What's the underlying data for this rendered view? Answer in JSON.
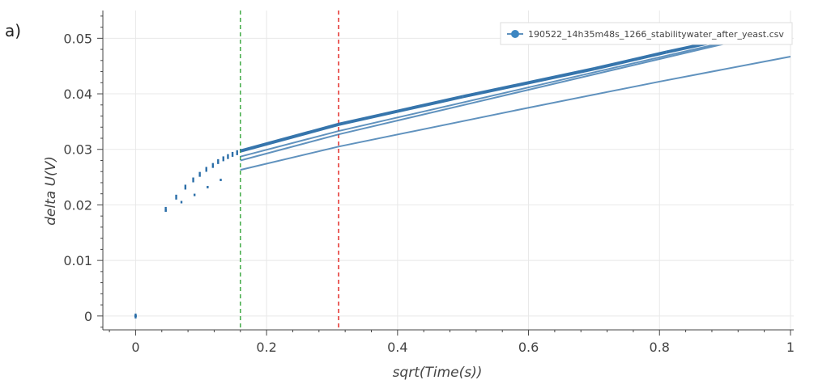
{
  "panel_label": "a)",
  "chart_data": {
    "type": "scatter",
    "xlabel": "sqrt(Time(s))",
    "ylabel": "delta U(V)",
    "xlim": [
      -0.05,
      1.005
    ],
    "ylim": [
      -0.0025,
      0.055
    ],
    "x_ticks": [
      0,
      0.2,
      0.4,
      0.6,
      0.8,
      1
    ],
    "x_tick_labels": [
      "0",
      "0.2",
      "0.4",
      "0.6",
      "0.8",
      "1"
    ],
    "y_ticks": [
      0,
      0.01,
      0.02,
      0.03,
      0.04,
      0.05
    ],
    "y_tick_labels": [
      "0",
      "0.01",
      "0.02",
      "0.03",
      "0.04",
      "0.05"
    ],
    "grid": true,
    "legend_position": "top-right",
    "series": [
      {
        "name": "190522_14h35m48s_1266_stabilitywater_after_yeast.csv",
        "color": "#2b6ea8",
        "traces": [
          {
            "x": [
              0,
              0.046,
              0.062,
              0.076,
              0.088,
              0.098,
              0.108,
              0.118,
              0.126,
              0.134,
              0.141,
              0.148,
              0.155,
              0.16,
              0.31,
              0.5,
              0.7,
              0.81,
              1.0
            ],
            "y": [
              0,
              0.0192,
              0.0214,
              0.0232,
              0.0245,
              0.0255,
              0.0264,
              0.0271,
              0.0278,
              0.0283,
              0.0287,
              0.0291,
              0.0294,
              0.0297,
              0.0345,
              0.0395,
              0.0445,
              0.0475,
              0.0523
            ]
          },
          {
            "x": [
              0.16,
              0.31,
              1.0
            ],
            "y": [
              0.0287,
              0.0333,
              0.052
            ]
          },
          {
            "x": [
              0.16,
              0.31,
              1.0
            ],
            "y": [
              0.028,
              0.0327,
              0.0518
            ]
          },
          {
            "x": [
              0.046,
              0.07,
              0.09,
              0.11,
              0.13,
              0.16,
              0.31,
              0.6,
              0.8,
              1.0
            ],
            "y": [
              0.019,
              0.0205,
              0.0218,
              0.0232,
              0.0245,
              0.0263,
              0.0305,
              0.0375,
              0.0422,
              0.0467
            ]
          }
        ]
      }
    ],
    "vlines": [
      {
        "x": 0.16,
        "color": "#4caf50",
        "style": "dashed"
      },
      {
        "x": 0.31,
        "color": "#e53935",
        "style": "dashed"
      }
    ]
  }
}
